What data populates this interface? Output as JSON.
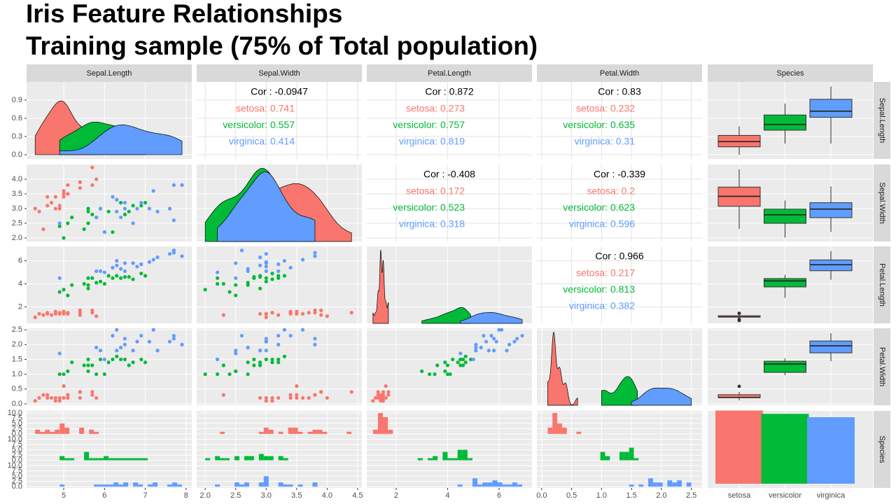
{
  "chart_data": {
    "type": "pairs",
    "title": "Iris Feature  Relationships",
    "subtitle": "Training sample (75% of Total population)",
    "variables": [
      "Sepal.Length",
      "Sepal.Width",
      "Petal.Length",
      "Petal.Width",
      "Species"
    ],
    "groups": [
      {
        "name": "setosa",
        "color": "#F8766D",
        "rows": [
          [
            5.1,
            3.5,
            1.4,
            0.2
          ],
          [
            4.9,
            3.0,
            1.4,
            0.2
          ],
          [
            4.7,
            3.2,
            1.3,
            0.2
          ],
          [
            4.6,
            3.1,
            1.5,
            0.2
          ],
          [
            5.0,
            3.6,
            1.4,
            0.2
          ],
          [
            5.4,
            3.9,
            1.7,
            0.4
          ],
          [
            4.6,
            3.4,
            1.4,
            0.3
          ],
          [
            5.0,
            3.4,
            1.5,
            0.2
          ],
          [
            4.4,
            2.9,
            1.4,
            0.2
          ],
          [
            4.9,
            3.1,
            1.5,
            0.1
          ],
          [
            5.4,
            3.7,
            1.5,
            0.2
          ],
          [
            4.8,
            3.4,
            1.6,
            0.2
          ],
          [
            4.8,
            3.0,
            1.4,
            0.1
          ],
          [
            4.3,
            3.0,
            1.1,
            0.1
          ],
          [
            5.8,
            4.0,
            1.2,
            0.2
          ],
          [
            5.7,
            4.4,
            1.5,
            0.4
          ],
          [
            5.4,
            3.9,
            1.3,
            0.4
          ],
          [
            5.1,
            3.5,
            1.4,
            0.3
          ],
          [
            5.7,
            3.8,
            1.7,
            0.3
          ],
          [
            5.1,
            3.8,
            1.5,
            0.3
          ],
          [
            4.5,
            2.3,
            1.3,
            0.3
          ],
          [
            5.0,
            3.5,
            1.6,
            0.6
          ]
        ]
      },
      {
        "name": "versicolor",
        "color": "#00BA38",
        "rows": [
          [
            7.0,
            3.2,
            4.7,
            1.4
          ],
          [
            6.4,
            3.2,
            4.5,
            1.5
          ],
          [
            6.9,
            3.1,
            4.9,
            1.5
          ],
          [
            5.5,
            2.3,
            4.0,
            1.3
          ],
          [
            6.5,
            2.8,
            4.6,
            1.5
          ],
          [
            5.7,
            2.8,
            4.5,
            1.3
          ],
          [
            6.3,
            3.3,
            4.7,
            1.6
          ],
          [
            4.9,
            2.4,
            3.3,
            1.0
          ],
          [
            6.6,
            2.9,
            4.6,
            1.3
          ],
          [
            5.2,
            2.7,
            3.9,
            1.4
          ],
          [
            5.0,
            2.0,
            3.5,
            1.0
          ],
          [
            5.9,
            3.0,
            4.2,
            1.5
          ],
          [
            6.0,
            2.2,
            4.0,
            1.0
          ],
          [
            6.1,
            2.9,
            4.7,
            1.4
          ],
          [
            5.6,
            2.9,
            3.6,
            1.3
          ],
          [
            6.7,
            3.1,
            4.4,
            1.4
          ],
          [
            5.6,
            3.0,
            4.5,
            1.5
          ],
          [
            5.8,
            2.7,
            4.1,
            1.0
          ],
          [
            6.2,
            2.2,
            4.5,
            1.5
          ],
          [
            5.6,
            2.5,
            3.9,
            1.1
          ],
          [
            5.1,
            2.5,
            3.0,
            1.1
          ]
        ]
      },
      {
        "name": "virginica",
        "color": "#619CFF",
        "rows": [
          [
            6.3,
            3.3,
            6.0,
            2.5
          ],
          [
            5.8,
            2.7,
            5.1,
            1.9
          ],
          [
            7.1,
            3.0,
            5.9,
            2.1
          ],
          [
            6.3,
            2.9,
            5.6,
            1.8
          ],
          [
            6.5,
            3.0,
            5.8,
            2.2
          ],
          [
            7.6,
            3.0,
            6.6,
            2.1
          ],
          [
            4.9,
            2.5,
            4.5,
            1.7
          ],
          [
            7.3,
            2.9,
            6.3,
            1.8
          ],
          [
            6.7,
            2.5,
            5.8,
            1.8
          ],
          [
            7.2,
            3.6,
            6.1,
            2.5
          ],
          [
            6.5,
            3.2,
            5.1,
            2.0
          ],
          [
            6.4,
            2.7,
            5.3,
            1.9
          ],
          [
            6.8,
            3.0,
            5.5,
            2.1
          ],
          [
            7.7,
            3.8,
            6.7,
            2.2
          ],
          [
            7.7,
            2.6,
            6.9,
            2.3
          ],
          [
            6.0,
            2.2,
            5.0,
            1.5
          ],
          [
            6.9,
            3.2,
            5.7,
            2.3
          ],
          [
            7.9,
            3.8,
            6.4,
            2.0
          ],
          [
            6.2,
            3.4,
            5.4,
            2.3
          ],
          [
            5.9,
            3.0,
            5.1,
            1.8
          ]
        ]
      }
    ],
    "x_axes": [
      {
        "lim": [
          4.09,
          8.14
        ],
        "ticks": [
          5,
          6,
          7,
          8
        ]
      },
      {
        "lim": [
          1.86,
          4.57
        ],
        "ticks": [
          {
            "value": 2,
            "label": "2.0"
          },
          2.5,
          {
            "value": 3,
            "label": "3.0"
          },
          3.5,
          {
            "value": 4,
            "label": "4.0"
          },
          4.5
        ]
      },
      {
        "lim": [
          0.86,
          7.28
        ],
        "ticks": [
          2,
          4,
          6
        ]
      },
      {
        "lim": [
          -0.08,
          2.68
        ],
        "ticks": [
          {
            "value": 0,
            "label": "0.0"
          },
          0.5,
          {
            "value": 1,
            "label": "1.0"
          },
          1.5,
          {
            "value": 2,
            "label": "2.0"
          },
          2.5
        ]
      }
    ],
    "y_axes": [
      {
        "lim": [
          -0.07,
          1.2
        ],
        "ticks": [
          {
            "value": 0,
            "label": "0.0"
          },
          0.3,
          0.6,
          0.9
        ]
      },
      {
        "lim": [
          1.88,
          4.5
        ],
        "ticks": [
          {
            "value": 2,
            "label": "2.0"
          },
          2.5,
          {
            "value": 3,
            "label": "3.0"
          },
          3.5,
          {
            "value": 4,
            "label": "4.0"
          }
        ]
      },
      {
        "lim": [
          0.57,
          7.25
        ],
        "ticks": [
          2,
          4,
          6
        ]
      },
      {
        "lim": [
          -0.05,
          2.55
        ],
        "ticks": [
          {
            "value": 0,
            "label": "0.0"
          },
          0.5,
          {
            "value": 1,
            "label": "1.0"
          },
          1.5,
          {
            "value": 2,
            "label": "2.0"
          },
          2.5
        ]
      }
    ],
    "hist_axis": {
      "lim": [
        -0.6,
        11
      ],
      "ticks": [
        {
          "value": 0,
          "label": "0.0"
        },
        2.5,
        {
          "value": 5,
          "label": "5.0"
        },
        7.5,
        {
          "value": 10,
          "label": "10.0"
        }
      ]
    },
    "correlations": [
      {
        "cor": "Cor : -0.0947",
        "by_group": [
          "setosa: 0.741",
          "versicolor: 0.557",
          "virginica: 0.414"
        ]
      },
      {
        "cor": "Cor : 0.872",
        "by_group": [
          "setosa: 0.273",
          "versicolor: 0.757",
          "virginica: 0.819"
        ]
      },
      {
        "cor": "Cor : 0.83",
        "by_group": [
          "setosa: 0.232",
          "versicolor: 0.635",
          "virginica: 0.31"
        ]
      },
      {
        "cor": "Cor : -0.408",
        "by_group": [
          "setosa: 0.172",
          "versicolor: 0.523",
          "virginica: 0.318"
        ]
      },
      {
        "cor": "Cor : -0.339",
        "by_group": [
          "setosa: 0.2",
          "versicolor: 0.623",
          "virginica: 0.596"
        ]
      },
      {
        "cor": "Cor : 0.966",
        "by_group": [
          "setosa: 0.217",
          "versicolor: 0.813",
          "virginica: 0.382"
        ]
      }
    ]
  }
}
